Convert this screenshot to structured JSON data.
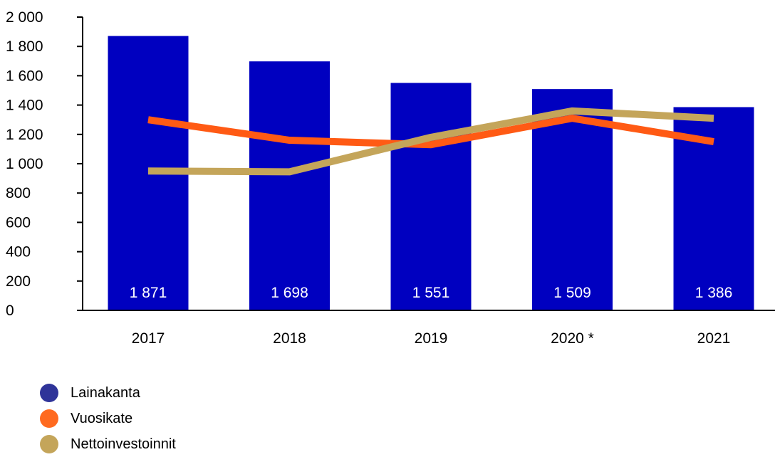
{
  "chart_data": {
    "type": "bar",
    "categories": [
      "2017",
      "2018",
      "2019",
      "2020 *",
      "2021"
    ],
    "ylim": [
      0,
      2000
    ],
    "yticks": [
      0,
      200,
      400,
      600,
      800,
      1000,
      1200,
      1400,
      1600,
      1800,
      2000
    ],
    "ytick_labels": [
      "0",
      "200",
      "400",
      "600",
      "800",
      "1 000",
      "1 200",
      "1 400",
      "1 600",
      "1 800",
      "2 000"
    ],
    "grid": false,
    "legend_position": "bottom-left",
    "series": [
      {
        "name": "Lainakanta",
        "type": "bar",
        "color": "#0000c0",
        "values": [
          1871,
          1698,
          1551,
          1509,
          1386
        ],
        "labels": [
          "1 871",
          "1 698",
          "1 551",
          "1 509",
          "1 386"
        ]
      },
      {
        "name": "Vuosikate",
        "type": "line",
        "color": "#ff5a14",
        "values": [
          1300,
          1160,
          1130,
          1310,
          1150
        ]
      },
      {
        "name": "Nettoinvestoinnit",
        "type": "line",
        "color": "#c4a55a",
        "values": [
          950,
          945,
          1180,
          1360,
          1310
        ]
      }
    ]
  },
  "legend": [
    {
      "label": "Lainakanta",
      "color": "#2f3499"
    },
    {
      "label": "Vuosikate",
      "color": "#ff6a1f"
    },
    {
      "label": "Nettoinvestoinnit",
      "color": "#c4a55a"
    }
  ]
}
